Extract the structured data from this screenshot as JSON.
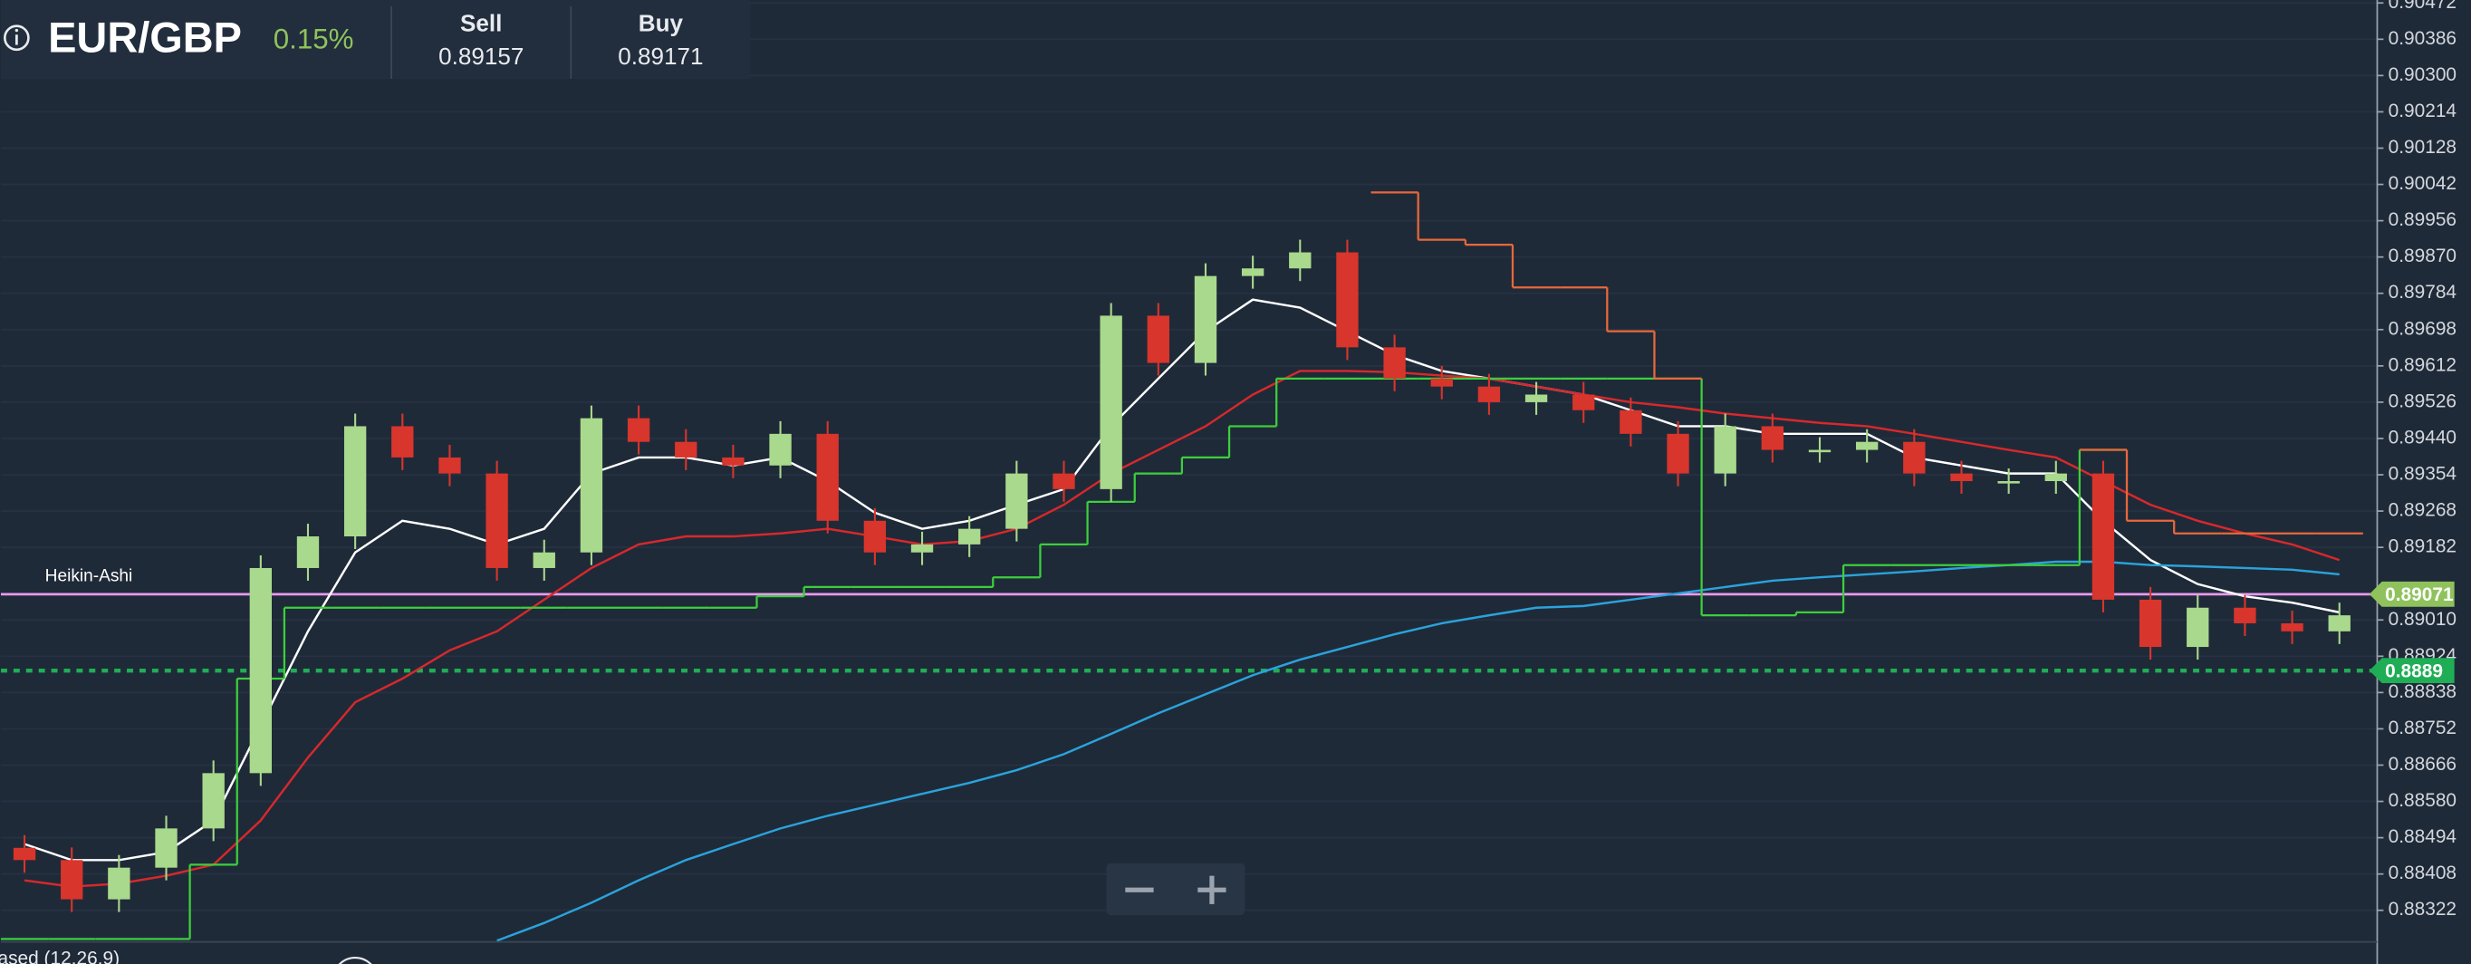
{
  "header": {
    "symbol": "EUR/GBP",
    "change": "0.15%",
    "sell_label": "Sell",
    "sell": "0.89157",
    "buy_label": "Buy",
    "buy": "0.89171"
  },
  "chart_data": {
    "type": "candlestick",
    "label": "Heikin-Ashi",
    "indicator_label": "ased (12,26,9)",
    "up_color": "#a9d98c",
    "down_color": "#d8352c",
    "open": [
      0.8847,
      0.88441,
      0.88348,
      0.88423,
      0.88516,
      0.88647,
      0.89133,
      0.89208,
      0.89469,
      0.89395,
      0.89357,
      0.89133,
      0.8917,
      0.89488,
      0.89432,
      0.89395,
      0.89376,
      0.89451,
      0.89245,
      0.8917,
      0.89189,
      0.89226,
      0.89357,
      0.8932,
      0.89731,
      0.89619,
      0.89825,
      0.89843,
      0.89881,
      0.89656,
      0.89582,
      0.89563,
      0.89526,
      0.89544,
      0.89507,
      0.89451,
      0.89357,
      0.89469,
      0.89413,
      0.89413,
      0.89432,
      0.89357,
      0.89339,
      0.89339,
      0.89357,
      0.89058,
      0.88946,
      0.89039,
      0.89002,
      0.88983
    ],
    "high": [
      0.885,
      0.88471,
      0.88453,
      0.88546,
      0.88677,
      0.89163,
      0.89238,
      0.89499,
      0.89499,
      0.89425,
      0.89387,
      0.892,
      0.89518,
      0.89518,
      0.89462,
      0.89425,
      0.89481,
      0.89481,
      0.89275,
      0.89219,
      0.89256,
      0.89387,
      0.89387,
      0.89761,
      0.89761,
      0.89855,
      0.89873,
      0.89911,
      0.89911,
      0.89686,
      0.89612,
      0.89593,
      0.89574,
      0.89574,
      0.89537,
      0.89481,
      0.89499,
      0.89499,
      0.89443,
      0.89462,
      0.89462,
      0.89387,
      0.89369,
      0.89387,
      0.89387,
      0.89088,
      0.89069,
      0.89069,
      0.89032,
      0.89051
    ],
    "low": [
      0.88411,
      0.88318,
      0.88318,
      0.88393,
      0.88486,
      0.88617,
      0.89103,
      0.89178,
      0.89365,
      0.89327,
      0.89103,
      0.89103,
      0.8914,
      0.89402,
      0.89365,
      0.89346,
      0.89346,
      0.89215,
      0.8914,
      0.8914,
      0.89159,
      0.89196,
      0.8929,
      0.8929,
      0.89589,
      0.89589,
      0.89795,
      0.89813,
      0.89626,
      0.89552,
      0.89533,
      0.89496,
      0.89496,
      0.89477,
      0.89421,
      0.89327,
      0.89327,
      0.89383,
      0.89383,
      0.89383,
      0.89327,
      0.89309,
      0.89309,
      0.89309,
      0.89028,
      0.88916,
      0.88916,
      0.88972,
      0.88953,
      0.88953
    ],
    "close": [
      0.88441,
      0.88348,
      0.88423,
      0.88516,
      0.88647,
      0.89133,
      0.89208,
      0.89469,
      0.89395,
      0.89357,
      0.89133,
      0.8917,
      0.89488,
      0.89432,
      0.89395,
      0.89376,
      0.89451,
      0.89245,
      0.8917,
      0.89189,
      0.89226,
      0.89357,
      0.8932,
      0.89731,
      0.89619,
      0.89825,
      0.89843,
      0.89881,
      0.89656,
      0.89582,
      0.89563,
      0.89526,
      0.89544,
      0.89507,
      0.89451,
      0.89357,
      0.89469,
      0.89413,
      0.89413,
      0.89432,
      0.89357,
      0.89339,
      0.89339,
      0.89357,
      0.89058,
      0.88946,
      0.89039,
      0.89002,
      0.88983,
      0.89021
    ],
    "series": [
      {
        "color": "#ffffff",
        "values": [
          0.88479,
          0.88441,
          0.88441,
          0.8846,
          0.88535,
          0.88759,
          0.88983,
          0.8917,
          0.89245,
          0.89226,
          0.89189,
          0.89226,
          0.89357,
          0.89395,
          0.89395,
          0.89376,
          0.89395,
          0.89339,
          0.89264,
          0.89226,
          0.89245,
          0.89283,
          0.8932,
          0.89469,
          0.89582,
          0.89694,
          0.89769,
          0.8975,
          0.89694,
          0.89638,
          0.896,
          0.89582,
          0.89563,
          0.89544,
          0.89507,
          0.89469,
          0.89469,
          0.89451,
          0.89451,
          0.89451,
          0.89395,
          0.89376,
          0.89357,
          0.89357,
          0.89245,
          0.89152,
          0.89095,
          0.89066,
          0.89051,
          0.89028
        ]
      },
      {
        "color": "#d8282c",
        "values": [
          0.88393,
          0.88378,
          0.88385,
          0.88404,
          0.8843,
          0.88535,
          0.88684,
          0.88815,
          0.88871,
          0.88938,
          0.88983,
          0.89058,
          0.89133,
          0.89189,
          0.89208,
          0.89208,
          0.89215,
          0.89226,
          0.89208,
          0.89189,
          0.89197,
          0.89226,
          0.89283,
          0.89357,
          0.89413,
          0.89469,
          0.89544,
          0.896,
          0.896,
          0.89597,
          0.89589,
          0.89582,
          0.89563,
          0.89544,
          0.89526,
          0.89514,
          0.89499,
          0.89488,
          0.89477,
          0.89469,
          0.89451,
          0.89432,
          0.89413,
          0.89395,
          0.89339,
          0.89283,
          0.89245,
          0.89215,
          0.89189,
          0.89152
        ]
      },
      {
        "color": "#2aa3dc",
        "values": [
          null,
          null,
          null,
          null,
          null,
          null,
          null,
          null,
          null,
          null,
          0.8825,
          0.88292,
          0.8834,
          0.88393,
          0.88441,
          0.88479,
          0.88516,
          0.88546,
          0.88572,
          0.88598,
          0.88624,
          0.88654,
          0.88692,
          0.8874,
          0.88789,
          0.88834,
          0.88879,
          0.88916,
          0.88946,
          0.88976,
          0.89002,
          0.89021,
          0.89039,
          0.89043,
          0.89058,
          0.89073,
          0.89088,
          0.89103,
          0.89111,
          0.89118,
          0.89125,
          0.89133,
          0.8914,
          0.89148,
          0.89148,
          0.8914,
          0.89137,
          0.89133,
          0.89129,
          0.89118
        ]
      },
      {
        "color": "#3ccf3c",
        "step": true,
        "values": [
          0.88254,
          0.88254,
          0.88254,
          0.88254,
          0.8843,
          0.88871,
          0.89039,
          0.89039,
          0.89039,
          0.89039,
          0.89039,
          0.89039,
          0.89039,
          0.89039,
          0.89039,
          0.89039,
          0.89066,
          0.89088,
          0.89088,
          0.89088,
          0.89088,
          0.89111,
          0.89189,
          0.8929,
          0.89357,
          0.89395,
          0.89469,
          0.89582,
          0.89582,
          0.89582,
          0.89582,
          0.89582,
          0.89582,
          0.89582,
          0.89582,
          0.89582,
          0.89021,
          0.89021,
          0.89028,
          0.8914,
          0.8914,
          0.8914,
          0.8914,
          0.8914,
          0.89413,
          null,
          null,
          null,
          null,
          null
        ]
      },
      {
        "color": "#e8683a",
        "step": true,
        "values": [
          null,
          null,
          null,
          null,
          null,
          null,
          null,
          null,
          null,
          null,
          null,
          null,
          null,
          null,
          null,
          null,
          null,
          null,
          null,
          null,
          null,
          null,
          null,
          null,
          null,
          null,
          null,
          null,
          null,
          0.90023,
          0.89911,
          0.89899,
          0.89798,
          0.89798,
          0.89694,
          0.89582,
          null,
          null,
          null,
          null,
          null,
          null,
          null,
          null,
          0.89413,
          0.89245,
          0.89215,
          0.89215,
          0.89215,
          0.89215
        ]
      }
    ],
    "hlines": [
      {
        "value": 0.89071,
        "color": "#e79bf0",
        "tag_color": "#8fc25c"
      },
      {
        "value": 0.8889,
        "color": "#1fae55",
        "tag_color": "#1fae55",
        "dotted": true
      }
    ],
    "ylim": [
      0.88247,
      0.90479
    ],
    "yticks": [
      0.90472,
      0.90386,
      {
        "value": 0.903,
        "label": "0.90300"
      },
      0.90214,
      0.90128,
      0.90042,
      0.89956,
      {
        "value": 0.8987,
        "label": "0.89870"
      },
      0.89784,
      0.89698,
      0.89612,
      0.89526,
      {
        "value": 0.8944,
        "label": "0.89440"
      },
      0.89354,
      0.89268,
      0.89182,
      {
        "value": 0.8901,
        "label": "0.89010"
      },
      0.88924,
      0.88838,
      0.88752,
      0.88666,
      {
        "value": 0.8858,
        "label": "0.88580"
      },
      0.88494,
      0.88408,
      0.88322
    ],
    "grid": true
  }
}
